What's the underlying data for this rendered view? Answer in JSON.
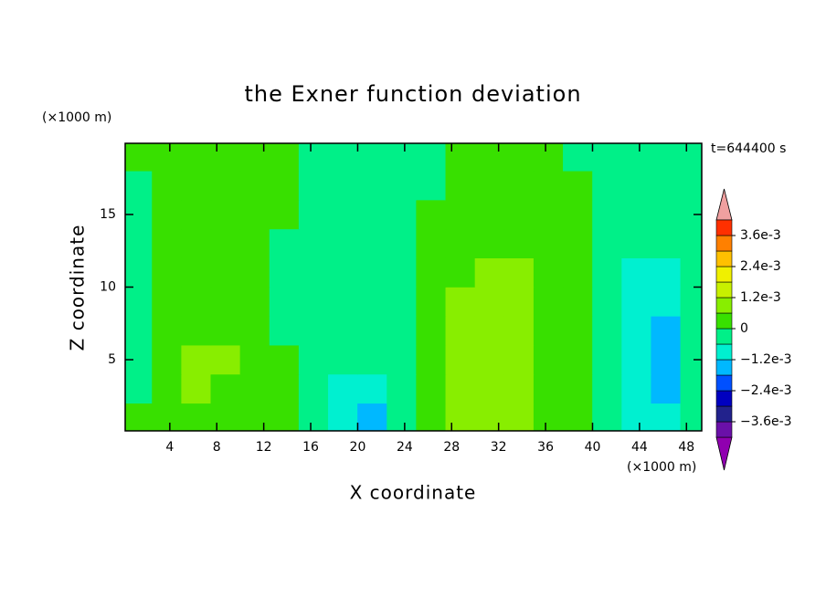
{
  "chart_data": {
    "type": "contour",
    "title": "the Exner function deviation",
    "x_label": "X coordinate",
    "y_label": "Z coordinate",
    "x_unit": "(×1000 m)",
    "y_unit": "(×1000 m)",
    "time_label": "t=644400 s",
    "xlim": [
      0.2,
      49.3
    ],
    "ylim": [
      0.1,
      19.9
    ],
    "xticks": [
      4,
      8,
      12,
      16,
      20,
      24,
      28,
      32,
      36,
      40,
      44,
      48
    ],
    "yticks": [
      5,
      10,
      15
    ],
    "x": [
      1.25,
      3.75,
      6.25,
      8.75,
      11.25,
      13.75,
      16.25,
      18.75,
      21.25,
      23.75,
      26.25,
      28.75,
      31.25,
      33.75,
      36.25,
      38.75,
      41.25,
      43.75,
      46.25,
      48.75
    ],
    "y": [
      1,
      3,
      5,
      7,
      9,
      11,
      13,
      15,
      17,
      19
    ],
    "z": [
      [
        0.0003,
        0.0003,
        0.0003,
        0.0003,
        0.0003,
        0.0003,
        -0.0003,
        -0.0009,
        -0.0015,
        -0.0003,
        0.0003,
        0.0009,
        0.0009,
        0.0009,
        0.0003,
        0.0003,
        -0.0003,
        -0.0009,
        -0.0009,
        -0.0003
      ],
      [
        -0.0003,
        0.0003,
        0.0009,
        0.0003,
        0.0003,
        0.0003,
        -0.0003,
        -0.0009,
        -0.0009,
        -0.0003,
        0.0003,
        0.0009,
        0.0009,
        0.0009,
        0.0003,
        0.0003,
        -0.0003,
        -0.0009,
        -0.0015,
        -0.0003
      ],
      [
        -0.0003,
        0.0003,
        0.0009,
        0.0009,
        0.0003,
        0.0003,
        -0.0003,
        -0.0003,
        -0.0003,
        -0.0003,
        0.0003,
        0.0009,
        0.0009,
        0.0009,
        0.0003,
        0.0003,
        -0.0003,
        -0.0009,
        -0.0015,
        -0.0003
      ],
      [
        -0.0003,
        0.0003,
        0.0003,
        0.0003,
        0.0003,
        -0.0003,
        -0.0003,
        -0.0003,
        -0.0003,
        -0.0003,
        0.0003,
        0.0009,
        0.0009,
        0.0009,
        0.0003,
        0.0003,
        -0.0003,
        -0.0009,
        -0.0015,
        -0.0003
      ],
      [
        -0.0003,
        0.0003,
        0.0003,
        0.0003,
        0.0003,
        -0.0003,
        -0.0003,
        -0.0003,
        -0.0003,
        -0.0003,
        0.0003,
        0.0009,
        0.0009,
        0.0009,
        0.0003,
        0.0003,
        -0.0003,
        -0.0009,
        -0.0009,
        -0.0003
      ],
      [
        -0.0003,
        0.0003,
        0.0003,
        0.0003,
        0.0003,
        -0.0003,
        -0.0003,
        -0.0003,
        -0.0003,
        -0.0003,
        0.0003,
        0.0003,
        0.0009,
        0.0009,
        0.0003,
        0.0003,
        -0.0003,
        -0.0009,
        -0.0009,
        -0.0003
      ],
      [
        -0.0003,
        0.0003,
        0.0003,
        0.0003,
        0.0003,
        -0.0003,
        -0.0003,
        -0.0003,
        -0.0003,
        -0.0003,
        0.0003,
        0.0003,
        0.0003,
        0.0003,
        0.0003,
        0.0003,
        -0.0003,
        -0.0003,
        -0.0003,
        -0.0003
      ],
      [
        -0.0003,
        0.0003,
        0.0003,
        0.0003,
        0.0003,
        0.0003,
        -0.0003,
        -0.0003,
        -0.0003,
        -0.0003,
        0.0003,
        0.0003,
        0.0003,
        0.0003,
        0.0003,
        0.0003,
        -0.0003,
        -0.0003,
        -0.0003,
        -0.0003
      ],
      [
        -0.0003,
        0.0003,
        0.0003,
        0.0003,
        0.0003,
        0.0003,
        -0.0003,
        -0.0003,
        -0.0003,
        -0.0003,
        -0.0003,
        0.0003,
        0.0003,
        0.0003,
        0.0003,
        0.0003,
        -0.0003,
        -0.0003,
        -0.0003,
        -0.0003
      ],
      [
        0.0003,
        0.0003,
        0.0003,
        0.0003,
        0.0003,
        0.0003,
        -0.0003,
        -0.0003,
        -0.0003,
        -0.0003,
        -0.0003,
        0.0003,
        0.0003,
        0.0003,
        0.0003,
        -0.0003,
        -0.0003,
        -0.0003,
        -0.0003,
        -0.0003
      ]
    ],
    "colorbar": {
      "levels": [
        -0.0042,
        -0.0036,
        -0.003,
        -0.0024,
        -0.0018,
        -0.0012,
        -0.0006,
        0,
        0.0006,
        0.0012,
        0.0018,
        0.0024,
        0.003,
        0.0036,
        0.0042
      ],
      "colors": [
        "#6a10a8",
        "#22228c",
        "#0000c0",
        "#0050ff",
        "#00b8ff",
        "#00f0d0",
        "#00f088",
        "#38e000",
        "#88ee00",
        "#c8f000",
        "#f0f000",
        "#ffc000",
        "#ff8000",
        "#ff3000"
      ],
      "under_color": "#9000b0",
      "over_color": "#f0a0a0",
      "ticks": [
        {
          "value": 0.0036,
          "label": "3.6e-3"
        },
        {
          "value": 0.0024,
          "label": "2.4e-3"
        },
        {
          "value": 0.0012,
          "label": "1.2e-3"
        },
        0,
        {
          "value": -0.0012,
          "label": "−1.2e-3"
        },
        {
          "value": -0.0024,
          "label": "−2.4e-3"
        },
        {
          "value": -0.0036,
          "label": "−3.6e-3"
        }
      ]
    }
  }
}
